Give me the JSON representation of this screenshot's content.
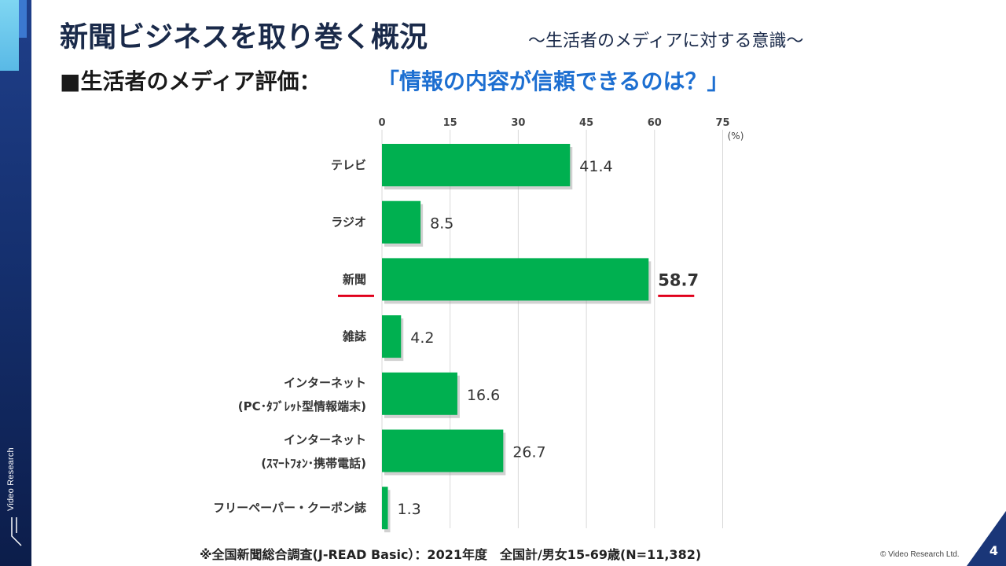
{
  "header": {
    "title": "新聞ビジネスを取り巻く概況",
    "subtitle": "～生活者のメディアに対する意識～",
    "section": "■生活者のメディア評価：",
    "question": "「情報の内容が信頼できるのは？」"
  },
  "brand": {
    "sidebar_text": "Video Research"
  },
  "footer": {
    "note": "※全国新聞総合調査(J-READ Basic）：2021年度　全国計/男女15-69歳(N=11,382)",
    "copyright": "© Video Research  Ltd.",
    "page": "4"
  },
  "colors": {
    "bar": "#00b050",
    "highlight": "#e0001b",
    "accent": "#1d6fd1"
  },
  "chart_data": {
    "type": "bar",
    "orientation": "horizontal",
    "xlim": [
      0,
      75
    ],
    "xticks": [
      0,
      15,
      30,
      45,
      60,
      75
    ],
    "unit": "(%)",
    "grid": true,
    "highlight": "新聞",
    "categories": [
      [
        "テレビ"
      ],
      [
        "ラジオ"
      ],
      [
        "新聞"
      ],
      [
        "雑誌"
      ],
      [
        "インターネット",
        "(PC･ﾀﾌﾞﾚｯﾄ型情報端末)"
      ],
      [
        "インターネット",
        "(ｽﾏｰﾄﾌｫﾝ･携帯電話)"
      ],
      [
        "フリーペーパー・クーポン誌"
      ]
    ],
    "values": [
      41.4,
      8.5,
      58.7,
      4.2,
      16.6,
      26.7,
      1.3
    ],
    "value_labels": [
      "41.4",
      "8.5",
      "58.7",
      "4.2",
      "16.6",
      "26.7",
      "1.3"
    ]
  }
}
